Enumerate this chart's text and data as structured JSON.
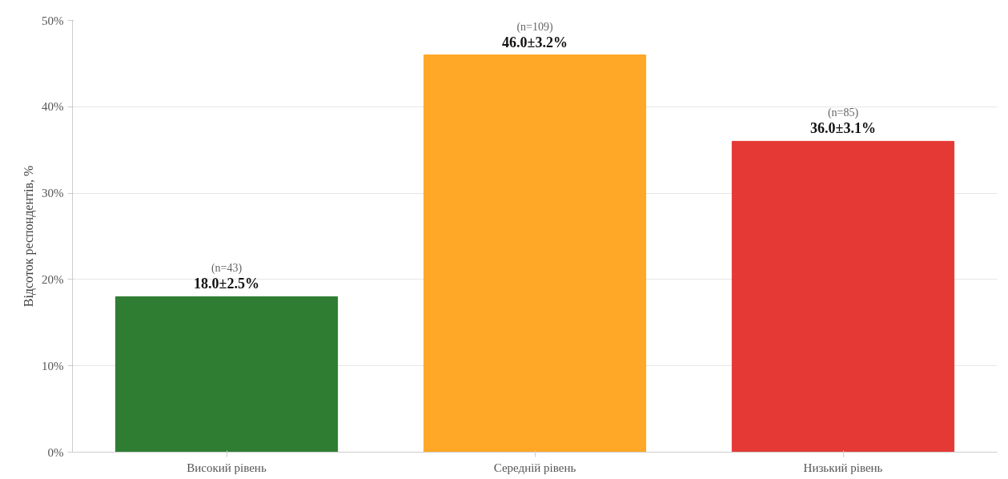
{
  "chart_data": {
    "type": "bar",
    "ylabel": "Відсоток респондентів, %",
    "categories": [
      "Високий рівень",
      "Середній рівень",
      "Низький рівень"
    ],
    "values": [
      18,
      46,
      36
    ],
    "colors": [
      "#2e7d32",
      "#ffa726",
      "#e53935"
    ],
    "value_labels": [
      "18.0±2.5%",
      "46.0±3.2%",
      "36.0±3.1%"
    ],
    "annotations": [
      {
        "text": "(n=43)",
        "x": "Високий рівень",
        "y": 18
      },
      {
        "text": "(n=109)",
        "x": "Середній рівень",
        "y": 46
      },
      {
        "text": "(n=85)",
        "x": "Низький рівень",
        "y": 36
      }
    ],
    "ylim": [
      0,
      50
    ],
    "yticks": [
      {
        "value": 0,
        "label": "0%"
      },
      {
        "value": 10,
        "label": "10%"
      },
      {
        "value": 20,
        "label": "20%"
      },
      {
        "value": 30,
        "label": "30%"
      },
      {
        "value": 40,
        "label": "40%"
      },
      {
        "value": 50,
        "label": "50%"
      }
    ],
    "grid": "y"
  }
}
